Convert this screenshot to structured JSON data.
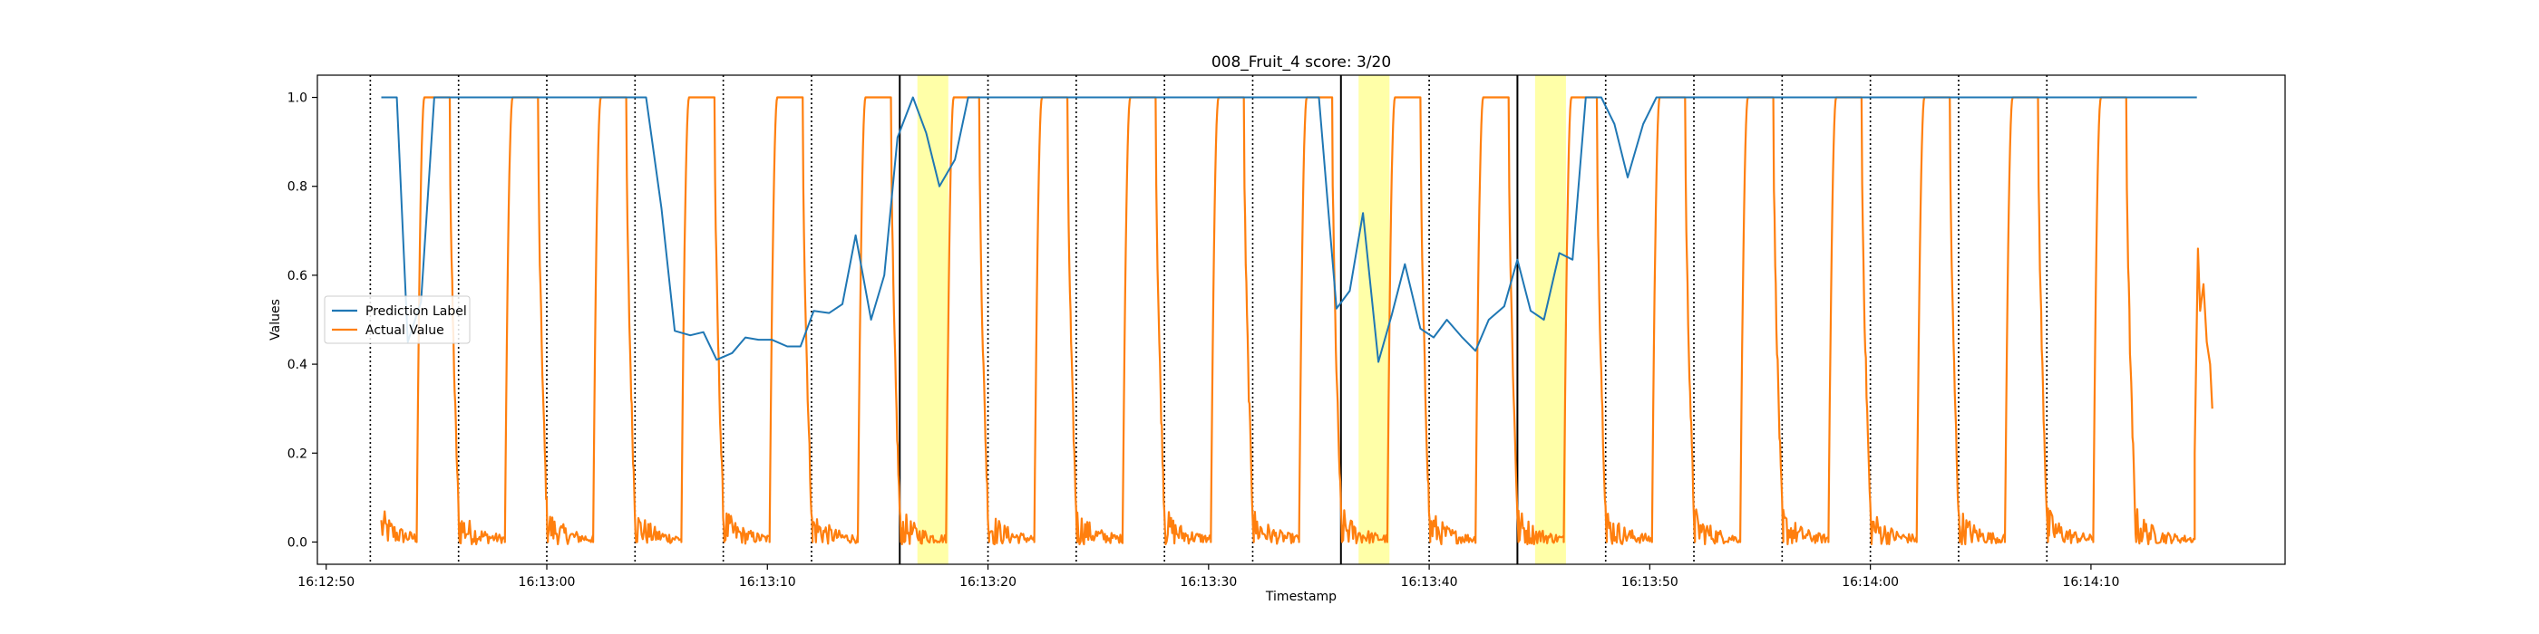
{
  "chart_data": {
    "type": "line",
    "title": "008_Fruit_4 score: 3/20",
    "xlabel": "Timestamp",
    "ylabel": "Values",
    "xlim": [
      "16:12:49.6",
      "16:14:18.8"
    ],
    "ylim": [
      -0.05,
      1.05
    ],
    "x_ticks": [
      "16:12:50",
      "16:13:00",
      "16:13:10",
      "16:13:20",
      "16:13:30",
      "16:13:40",
      "16:13:50",
      "16:14:00",
      "16:14:10"
    ],
    "y_ticks": [
      "0.0",
      "0.2",
      "0.4",
      "0.6",
      "0.8",
      "1.0"
    ],
    "grid": false,
    "legend": "center-left",
    "series": [
      {
        "name": "Prediction Label",
        "color": "#1f77b4",
        "x": [
          "16:12:52.5",
          "16:12:53.2",
          "16:12:53.7",
          "16:12:54.3",
          "16:12:54.9",
          "16:12:55.6",
          "16:13:02.0",
          "16:13:04.5",
          "16:13:05.2",
          "16:13:05.8",
          "16:13:06.5",
          "16:13:07.1",
          "16:13:07.7",
          "16:13:08.4",
          "16:13:09.0",
          "16:13:09.6",
          "16:13:10.2",
          "16:13:10.9",
          "16:13:11.5",
          "16:13:12.1",
          "16:13:12.8",
          "16:13:13.4",
          "16:13:14.0",
          "16:13:14.7",
          "16:13:15.3",
          "16:13:15.9",
          "16:13:16.6",
          "16:13:17.2",
          "16:13:17.8",
          "16:13:18.5",
          "16:13:19.1",
          "16:13:19.7",
          "16:13:20.3",
          "16:13:21.0",
          "16:13:35.0",
          "16:13:35.8",
          "16:13:36.4",
          "16:13:37.0",
          "16:13:37.7",
          "16:13:38.3",
          "16:13:38.9",
          "16:13:39.6",
          "16:13:40.2",
          "16:13:40.8",
          "16:13:41.5",
          "16:13:42.1",
          "16:13:42.7",
          "16:13:43.4",
          "16:13:44.0",
          "16:13:44.6",
          "16:13:45.2",
          "16:13:45.9",
          "16:13:46.5",
          "16:13:47.1",
          "16:13:47.8",
          "16:13:48.4",
          "16:13:49.0",
          "16:13:49.7",
          "16:13:50.3",
          "16:13:50.9",
          "16:13:51.6",
          "16:13:52.2",
          "16:13:52.8",
          "16:13:53.5",
          "16:14:14.8"
        ],
        "values": [
          1.0,
          1.0,
          0.45,
          0.54,
          1.0,
          1.0,
          1.0,
          1.0,
          0.75,
          0.475,
          0.465,
          0.472,
          0.41,
          0.425,
          0.46,
          0.455,
          0.455,
          0.44,
          0.44,
          0.52,
          0.515,
          0.535,
          0.69,
          0.5,
          0.6,
          0.91,
          1.0,
          0.92,
          0.8,
          0.86,
          1.0,
          1.0,
          1.0,
          1.0,
          1.0,
          0.525,
          0.565,
          0.74,
          0.405,
          0.51,
          0.625,
          0.48,
          0.46,
          0.5,
          0.46,
          0.43,
          0.5,
          0.53,
          0.635,
          0.52,
          0.5,
          0.65,
          0.635,
          1.0,
          1.0,
          0.94,
          0.82,
          0.94,
          1.0,
          1.0,
          1.0,
          1.0,
          1.0,
          1.0,
          1.0
        ]
      },
      {
        "name": "Actual Value",
        "color": "#ff7f0e",
        "kind": "square-wave",
        "low": 0.0,
        "high": 1.0,
        "rise_starts": [
          "16:12:54.1",
          "16:12:58.1",
          "16:13:02.1",
          "16:13:06.1",
          "16:13:10.1",
          "16:13:14.1",
          "16:13:18.1",
          "16:13:22.1",
          "16:13:26.1",
          "16:13:30.1",
          "16:13:34.1",
          "16:13:38.1",
          "16:13:42.1",
          "16:13:46.1",
          "16:13:50.1",
          "16:13:54.1",
          "16:13:58.1",
          "16:14:02.1",
          "16:14:06.1",
          "16:14:10.1"
        ],
        "fall_starts": [
          "16:12:55.6",
          "16:12:59.6",
          "16:13:03.6",
          "16:13:07.6",
          "16:13:11.6",
          "16:13:15.6",
          "16:13:19.6",
          "16:13:23.6",
          "16:13:27.6",
          "16:13:31.6",
          "16:13:35.6",
          "16:13:39.6",
          "16:13:43.6",
          "16:13:47.6",
          "16:13:51.6",
          "16:13:55.6",
          "16:13:59.6",
          "16:14:03.6",
          "16:14:07.6",
          "16:14:11.6"
        ],
        "start": "16:12:52.5",
        "end_spike": {
          "x": [
            "16:14:14.7",
            "16:14:14.85",
            "16:14:14.95",
            "16:14:15.1",
            "16:14:15.25",
            "16:14:15.4",
            "16:14:15.5"
          ],
          "values": [
            0.2,
            0.66,
            0.52,
            0.58,
            0.45,
            0.4,
            0.3
          ]
        }
      }
    ],
    "vlines_dotted": [
      "16:12:52.0",
      "16:12:56.0",
      "16:13:00.0",
      "16:13:04.0",
      "16:13:08.0",
      "16:13:12.0",
      "16:13:20.0",
      "16:13:24.0",
      "16:13:28.0",
      "16:13:32.0",
      "16:13:40.0",
      "16:13:48.0",
      "16:13:52.0",
      "16:13:56.0",
      "16:14:00.0",
      "16:14:04.0",
      "16:14:08.0"
    ],
    "vlines_solid": [
      "16:13:16.0",
      "16:13:36.0",
      "16:13:44.0"
    ],
    "highlight_spans": [
      [
        "16:13:16.8",
        "16:13:18.2"
      ],
      [
        "16:13:36.8",
        "16:13:38.2"
      ],
      [
        "16:13:44.8",
        "16:13:46.2"
      ]
    ],
    "highlight_color": "#ffff99"
  }
}
